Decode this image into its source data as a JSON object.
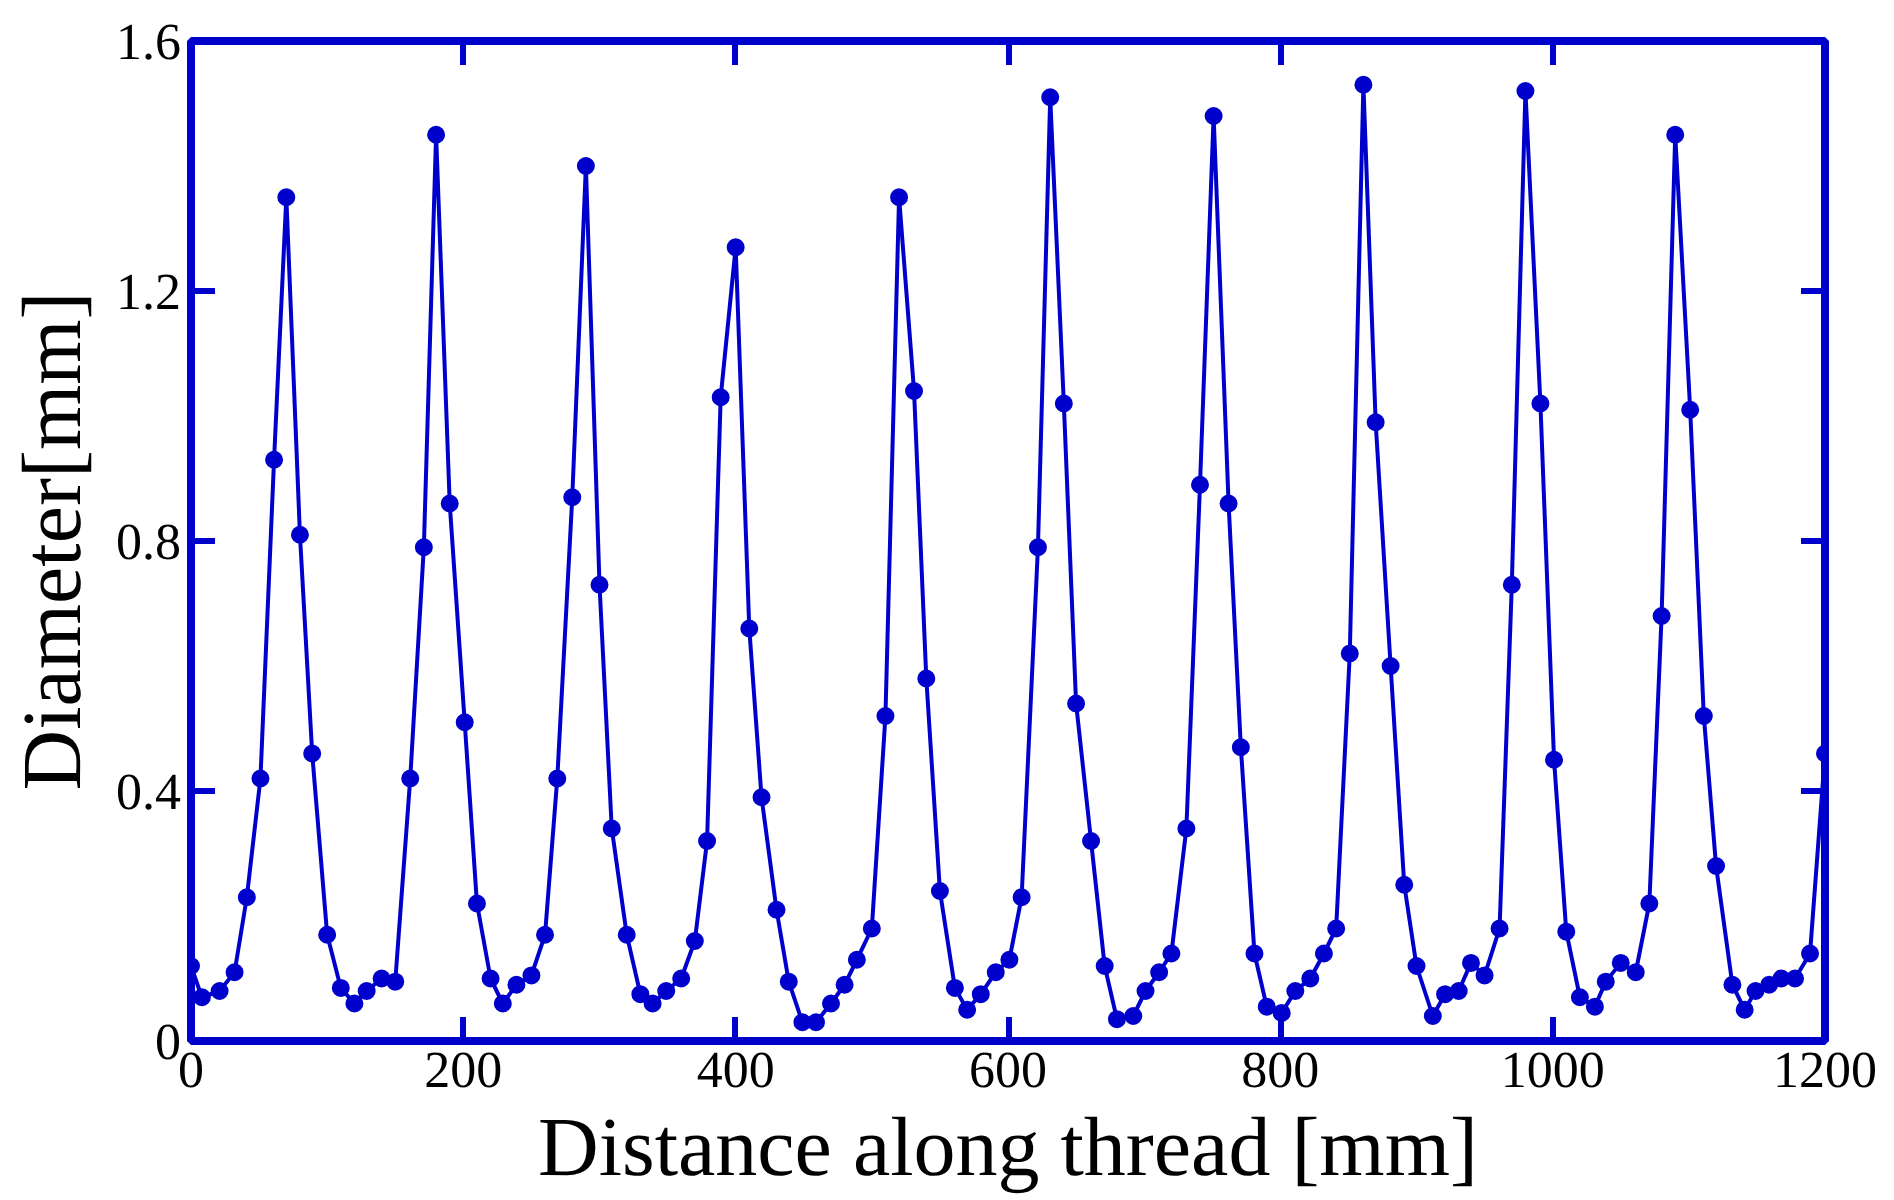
{
  "chart_data": {
    "type": "line",
    "xlabel": "Distance along thread [mm]",
    "ylabel": "Diameter[mm]",
    "marker": "circle",
    "line_style": "solid",
    "xlim": [
      0,
      1200
    ],
    "ylim": [
      0,
      1.6
    ],
    "xticks": [
      0,
      200,
      400,
      600,
      800,
      1000,
      1200
    ],
    "yticks": [
      {
        "value": 0,
        "label": "0"
      },
      0.4,
      0.8,
      1.2,
      1.6
    ],
    "series": [
      {
        "color": "#0000cc",
        "x": [
          0,
          8,
          21,
          32,
          41,
          51,
          61,
          70,
          80,
          89,
          100,
          110,
          120,
          129,
          140,
          150,
          161,
          171,
          180,
          190,
          201,
          210,
          220,
          229,
          239,
          250,
          260,
          269,
          280,
          290,
          300,
          309,
          320,
          330,
          339,
          349,
          360,
          370,
          379,
          389,
          400,
          410,
          419,
          430,
          439,
          449,
          459,
          470,
          480,
          489,
          500,
          510,
          520,
          531,
          540,
          550,
          561,
          570,
          580,
          591,
          601,
          610,
          622,
          631,
          641,
          650,
          661,
          671,
          680,
          692,
          701,
          711,
          720,
          731,
          741,
          751,
          762,
          771,
          781,
          790,
          801,
          811,
          822,
          832,
          841,
          851,
          861,
          870,
          881,
          891,
          900,
          912,
          921,
          931,
          940,
          950,
          961,
          970,
          980,
          991,
          1001,
          1010,
          1020,
          1031,
          1039,
          1050,
          1061,
          1071,
          1080,
          1090,
          1101,
          1111,
          1120,
          1132,
          1141,
          1149,
          1159,
          1168,
          1178,
          1189,
          1200
        ],
        "values": [
          0.12,
          0.07,
          0.08,
          0.11,
          0.23,
          0.42,
          0.93,
          1.35,
          0.81,
          0.46,
          0.17,
          0.085,
          0.06,
          0.08,
          0.1,
          0.095,
          0.42,
          0.79,
          1.45,
          0.86,
          0.51,
          0.22,
          0.1,
          0.06,
          0.09,
          0.105,
          0.17,
          0.42,
          0.87,
          1.4,
          0.73,
          0.34,
          0.17,
          0.075,
          0.06,
          0.08,
          0.1,
          0.16,
          0.32,
          1.03,
          1.27,
          0.66,
          0.39,
          0.21,
          0.095,
          0.03,
          0.03,
          0.06,
          0.09,
          0.13,
          0.18,
          0.52,
          1.35,
          1.04,
          0.58,
          0.24,
          0.085,
          0.05,
          0.075,
          0.11,
          0.13,
          0.23,
          0.79,
          1.51,
          1.02,
          0.54,
          0.32,
          0.12,
          0.035,
          0.04,
          0.08,
          0.11,
          0.14,
          0.34,
          0.89,
          1.48,
          0.86,
          0.47,
          0.14,
          0.055,
          0.045,
          0.08,
          0.1,
          0.14,
          0.18,
          0.62,
          1.53,
          0.99,
          0.6,
          0.25,
          0.12,
          0.04,
          0.075,
          0.08,
          0.125,
          0.105,
          0.18,
          0.73,
          1.52,
          1.02,
          0.45,
          0.175,
          0.07,
          0.055,
          0.095,
          0.125,
          0.11,
          0.22,
          0.68,
          1.45,
          1.01,
          0.52,
          0.28,
          0.09,
          0.05,
          0.08,
          0.09,
          0.1,
          0.1,
          0.14,
          0.46
        ]
      }
    ]
  }
}
